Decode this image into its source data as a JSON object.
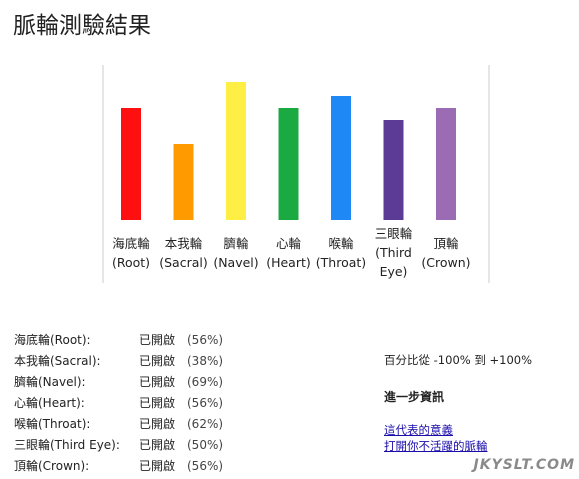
{
  "page": {
    "title": "脈輪測驗結果"
  },
  "chart_data": {
    "type": "bar",
    "categories": [
      {
        "line1": "海底輪",
        "line2": "(Root)",
        "color": "#ff1010"
      },
      {
        "line1": "本我輪",
        "line2": "(Sacral)",
        "color": "#ff9b00"
      },
      {
        "line1": "臍輪",
        "line2": "(Navel)",
        "color": "#ffee44"
      },
      {
        "line1": "心輪",
        "line2": "(Heart)",
        "color": "#1ba942"
      },
      {
        "line1": "喉輪",
        "line2": "(Throat)",
        "color": "#1e88f5"
      },
      {
        "line1": "三眼輪",
        "line2": "(Third",
        "line3": "Eye)",
        "color": "#5b3b96"
      },
      {
        "line1": "頂輪",
        "line2": "(Crown)",
        "color": "#9b6bb3"
      }
    ],
    "values": [
      56,
      38,
      69,
      56,
      62,
      50,
      56
    ],
    "ylim": [
      -100,
      100
    ]
  },
  "results": [
    {
      "name": "海底輪(Root):",
      "status": "已開啟",
      "pct": "(56%)"
    },
    {
      "name": "本我輪(Sacral):",
      "status": "已開啟",
      "pct": "(38%)"
    },
    {
      "name": "臍輪(Navel):",
      "status": "已開啟",
      "pct": "(69%)"
    },
    {
      "name": "心輪(Heart):",
      "status": "已開啟",
      "pct": "(56%)"
    },
    {
      "name": "喉輪(Throat):",
      "status": "已開啟",
      "pct": "(62%)"
    },
    {
      "name": "三眼輪(Third Eye):",
      "status": "已開啟",
      "pct": "(50%)"
    },
    {
      "name": "頂輪(Crown):",
      "status": "已開啟",
      "pct": "(56%)"
    }
  ],
  "side": {
    "range_text": "百分比從 -100% 到 +100%",
    "more_info": "進一步資訊",
    "links": [
      "這代表的意義",
      "打開你不活躍的脈輪"
    ]
  },
  "watermark": "JKYSLT.COM"
}
